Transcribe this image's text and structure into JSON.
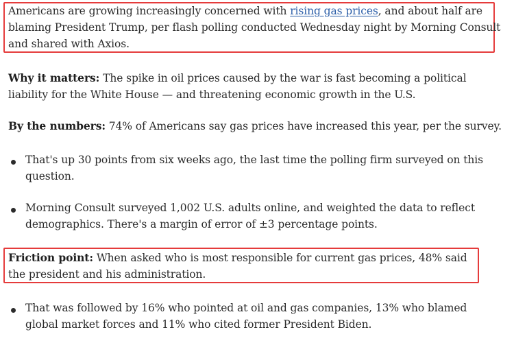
{
  "article": {
    "intro": {
      "before_link": "Americans are growing increasingly concerned with ",
      "link_text": "rising gas prices",
      "after_link": ", and about half are blaming President Trump, per flash polling conducted Wednesday night by Morning Consult and shared with Axios."
    },
    "why_it_matters": {
      "label": "Why it matters:",
      "text": " The spike in oil prices caused by the war is fast becoming a political liability for the White House — and threatening economic growth in the U.S."
    },
    "by_the_numbers": {
      "label": "By the numbers:",
      "text": " 74% of Americans say gas prices have increased this year, per the survey."
    },
    "numbers_bullets": [
      "That's up 30 points from six weeks ago, the last time the polling firm surveyed on this question.",
      "Morning Consult surveyed 1,002 U.S. adults online, and weighted the data to reflect demographics. There's a margin of error of ±3 percentage points."
    ],
    "friction_point": {
      "label": "Friction point:",
      "text": " When asked who is most responsible for current gas prices, 48% said the president and his administration."
    },
    "friction_bullets": [
      "That was followed by 16% who pointed at oil and gas companies, 13% who blamed global market forces and 11% who cited former President Biden."
    ]
  },
  "colors": {
    "highlight": "#e53b3b",
    "link": "#2b5ea8",
    "text": "#2b2b2b"
  }
}
